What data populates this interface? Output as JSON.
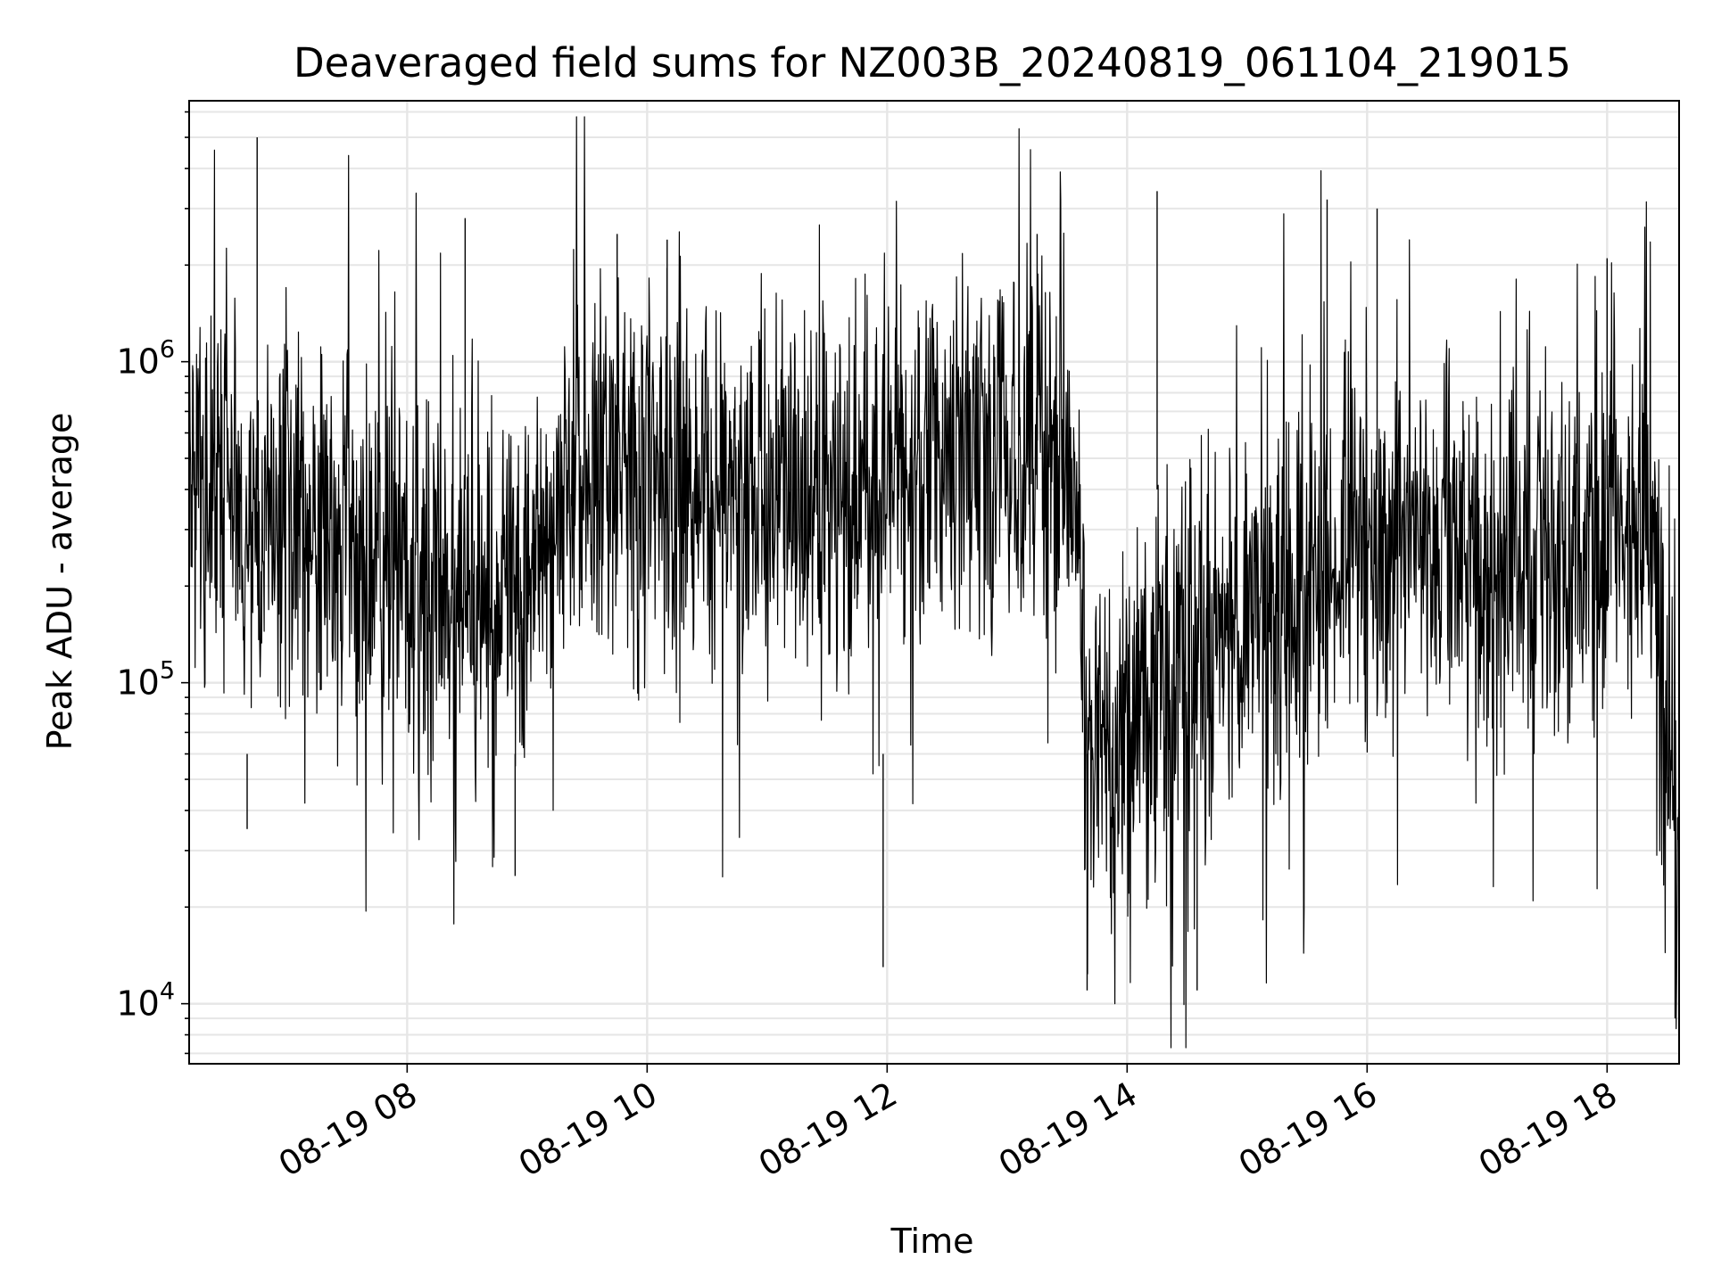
{
  "chart_data": {
    "type": "line",
    "title": "Deaveraged field sums for NZ003B_20240819_061104_219015",
    "xlabel": "Time",
    "ylabel": "Peak ADU - average",
    "y_scale": "log",
    "xlim": [
      "2024-08-19 06:11",
      "2024-08-19 18:36"
    ],
    "ylim": [
      6500,
      6500000
    ],
    "x_ticks": [
      {
        "value": "2024-08-19 08:00",
        "label": "08-19 08"
      },
      {
        "value": "2024-08-19 10:00",
        "label": "08-19 10"
      },
      {
        "value": "2024-08-19 12:00",
        "label": "08-19 12"
      },
      {
        "value": "2024-08-19 14:00",
        "label": "08-19 14"
      },
      {
        "value": "2024-08-19 16:00",
        "label": "08-19 16"
      },
      {
        "value": "2024-08-19 18:00",
        "label": "08-19 18"
      }
    ],
    "y_ticks": [
      {
        "value": 10000,
        "base": "10",
        "exp": "4"
      },
      {
        "value": 100000,
        "base": "10",
        "exp": "5"
      },
      {
        "value": 1000000,
        "base": "10",
        "exp": "6"
      }
    ],
    "grid": true,
    "line_color": "#000000",
    "grid_color": "#e6e6e6",
    "series": [
      {
        "x": [
          "2024-08-19 06:11",
          "2024-08-19 06:20",
          "2024-08-19 06:30",
          "2024-08-19 06:40",
          "2024-08-19 06:45",
          "2024-08-19 06:50",
          "2024-08-19 06:56",
          "2024-08-19 07:00",
          "2024-08-19 07:10",
          "2024-08-19 07:20",
          "2024-08-19 07:30",
          "2024-08-19 07:40",
          "2024-08-19 07:50",
          "2024-08-19 08:00",
          "2024-08-19 08:10",
          "2024-08-19 08:20",
          "2024-08-19 08:30",
          "2024-08-19 08:40",
          "2024-08-19 08:50",
          "2024-08-19 08:58",
          "2024-08-19 09:05",
          "2024-08-19 09:20",
          "2024-08-19 09:40",
          "2024-08-19 10:00",
          "2024-08-19 10:20",
          "2024-08-19 10:40",
          "2024-08-19 11:00",
          "2024-08-19 11:20",
          "2024-08-19 11:40",
          "2024-08-19 12:00",
          "2024-08-19 12:20",
          "2024-08-19 12:40",
          "2024-08-19 13:00",
          "2024-08-19 13:20",
          "2024-08-19 13:30",
          "2024-08-19 13:36",
          "2024-08-19 13:40",
          "2024-08-19 13:50",
          "2024-08-19 14:00",
          "2024-08-19 14:20",
          "2024-08-19 14:40",
          "2024-08-19 15:00",
          "2024-08-19 15:20",
          "2024-08-19 15:40",
          "2024-08-19 16:00",
          "2024-08-19 16:20",
          "2024-08-19 16:40",
          "2024-08-19 17:00",
          "2024-08-19 17:20",
          "2024-08-19 17:40",
          "2024-08-19 18:00",
          "2024-08-19 18:20",
          "2024-08-19 18:30",
          "2024-08-19 18:36"
        ],
        "y": [
          600000,
          550000,
          400000,
          300000,
          280000,
          300000,
          320000,
          350000,
          320000,
          280000,
          250000,
          220000,
          200000,
          230000,
          200000,
          180000,
          170000,
          160000,
          200000,
          150000,
          300000,
          400000,
          450000,
          450000,
          400000,
          400000,
          350000,
          350000,
          380000,
          420000,
          450000,
          480000,
          500000,
          550000,
          600000,
          200000,
          60000,
          50000,
          80000,
          100000,
          120000,
          150000,
          180000,
          250000,
          300000,
          280000,
          250000,
          230000,
          250000,
          280000,
          350000,
          400000,
          60000,
          20000
        ]
      }
    ],
    "peaks": [
      {
        "x": "2024-08-19 06:45",
        "y": 5000000
      },
      {
        "x": "2024-08-19 08:29",
        "y": 2800000
      },
      {
        "x": "2024-08-19 09:45",
        "y": 2500000
      },
      {
        "x": "2024-08-19 10:10",
        "y": 2400000
      },
      {
        "x": "2024-08-19 13:15",
        "y": 2500000
      },
      {
        "x": "2024-08-19 14:15",
        "y": 3400000
      },
      {
        "x": "2024-08-19 15:40",
        "y": 3200000
      },
      {
        "x": "2024-08-19 16:05",
        "y": 3000000
      },
      {
        "x": "2024-08-19 18:00",
        "y": 2100000
      }
    ],
    "troughs": [
      {
        "x": "2024-08-19 06:40",
        "y": 35000
      },
      {
        "x": "2024-08-19 08:54",
        "y": 25000
      },
      {
        "x": "2024-08-19 11:58",
        "y": 13000
      },
      {
        "x": "2024-08-19 13:40",
        "y": 11000
      },
      {
        "x": "2024-08-19 14:35",
        "y": 11000
      },
      {
        "x": "2024-08-19 18:34",
        "y": 9000
      }
    ]
  }
}
